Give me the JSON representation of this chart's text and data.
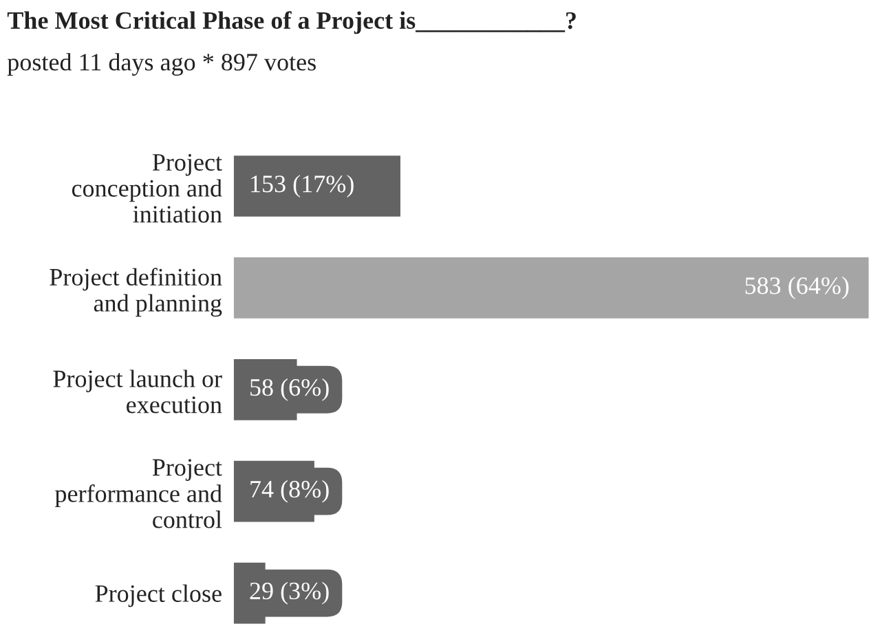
{
  "chart_data": {
    "type": "bar",
    "orientation": "horizontal",
    "title": "The Most Critical Phase of a Project is____________?",
    "subtitle": "posted 11 days ago * 897 votes",
    "categories": [
      "Project\nconception and\ninitiation",
      "Project definition\nand planning",
      "Project launch or\nexecution",
      "Project\nperformance and\ncontrol",
      "Project close"
    ],
    "values": [
      153,
      583,
      58,
      74,
      29
    ],
    "value_labels": [
      "153 (17%)",
      "583 (64%)",
      "58 (6%)",
      "74 (8%)",
      "29 (3%)"
    ],
    "colors": [
      "#636363",
      "#a5a5a5",
      "#636363",
      "#636363",
      "#636363"
    ],
    "grid": false,
    "legend": false
  }
}
